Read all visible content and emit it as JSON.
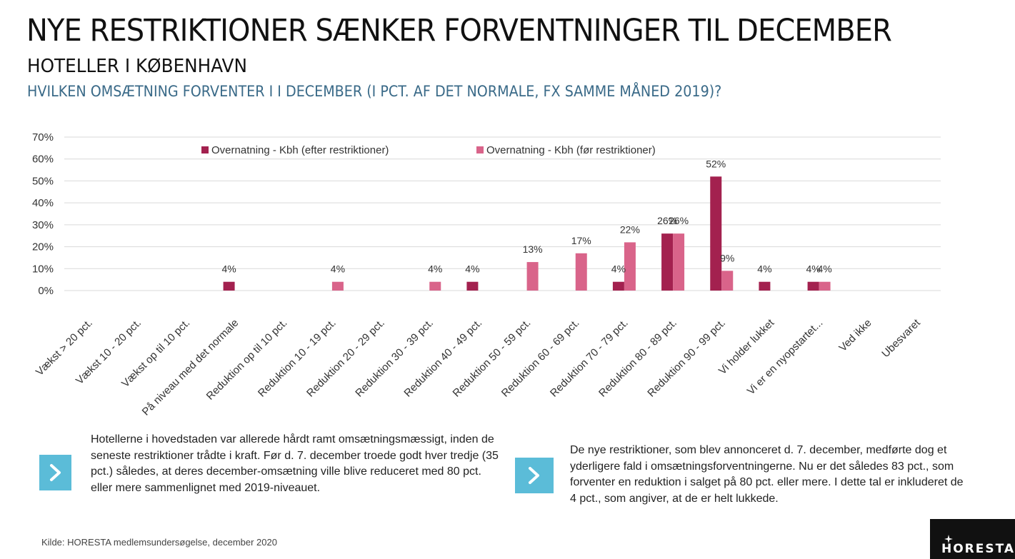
{
  "title": "NYE RESTRIKTIONER SÆNKER FORVENTNINGER TIL DECEMBER",
  "subtitle": "HOTELLER I KØBENHAVN",
  "question": "HVILKEN OMSÆTNING FORVENTER I I DECEMBER (I PCT. AF DET NORMALE, FX SAMME MÅNED 2019)?",
  "chart_data": {
    "type": "bar",
    "categories": [
      "Vækst > 20 pct.",
      "Vækst 10 - 20 pct.",
      "Vækst op til 10 pct.",
      "På niveau med det normale",
      "Reduktion op til 10 pct.",
      "Reduktion 10 - 19 pct.",
      "Reduktion 20 - 29 pct.",
      "Reduktion 30 - 39 pct.",
      "Reduktion 40 - 49 pct.",
      "Reduktion 50 - 59 pct.",
      "Reduktion 60 - 69 pct.",
      "Reduktion 70 - 79 pct.",
      "Reduktion 80 - 89 pct.",
      "Reduktion 90 - 99 pct.",
      "Vi holder lukket",
      "Vi er en nyopstartet...",
      "Ved ikke",
      "Ubesvaret"
    ],
    "series": [
      {
        "name": "Overnatning - Kbh (efter restriktioner)",
        "color": "#a3214f",
        "values": [
          0,
          0,
          0,
          4,
          0,
          0,
          0,
          0,
          4,
          0,
          0,
          4,
          26,
          52,
          4,
          4,
          0,
          0
        ],
        "labels": [
          "",
          "",
          "",
          "4%",
          "",
          "",
          "",
          "",
          "4%",
          "",
          "",
          "4%",
          "26%",
          "52%",
          "4%",
          "4%",
          "",
          ""
        ]
      },
      {
        "name": "Overnatning - Kbh (før restriktioner)",
        "color": "#d9648a",
        "values": [
          0,
          0,
          0,
          0,
          0,
          4,
          0,
          4,
          0,
          13,
          17,
          22,
          26,
          9,
          0,
          4,
          0,
          0
        ],
        "labels": [
          "",
          "",
          "",
          "",
          "",
          "4%",
          "",
          "4%",
          "",
          "13%",
          "17%",
          "22%",
          "26%",
          "9%",
          "",
          "4%",
          "",
          ""
        ]
      }
    ],
    "yticks": [
      "0%",
      "10%",
      "20%",
      "30%",
      "40%",
      "50%",
      "60%",
      "70%"
    ],
    "ylim": [
      0,
      70
    ],
    "grid": true,
    "legend_position": "top"
  },
  "notes": {
    "left": "Hotellerne i hovedstaden var allerede hårdt ramt omsætningsmæssigt, inden de seneste restriktioner trådte i kraft. Før d. 7. december troede godt hver tredje (35 pct.) således, at deres december-omsætning ville blive reduceret med 80 pct. eller mere sammenlignet med 2019-niveauet.",
    "right": "De nye restriktioner, som blev annonceret d. 7. december, medførte dog et yderligere fald i omsætningsforventningerne. Nu er det således 83 pct., som forventer en reduktion i salget på 80 pct. eller mere. I dette tal er inkluderet de 4 pct., som angiver, at de er helt lukkede."
  },
  "source": "Kilde: HORESTA medlemsundersøgelse, december 2020",
  "logo": "HORESTA",
  "icons": {
    "arrow": "chevron-right-icon",
    "logo_mark": "horesta-star-icon"
  }
}
